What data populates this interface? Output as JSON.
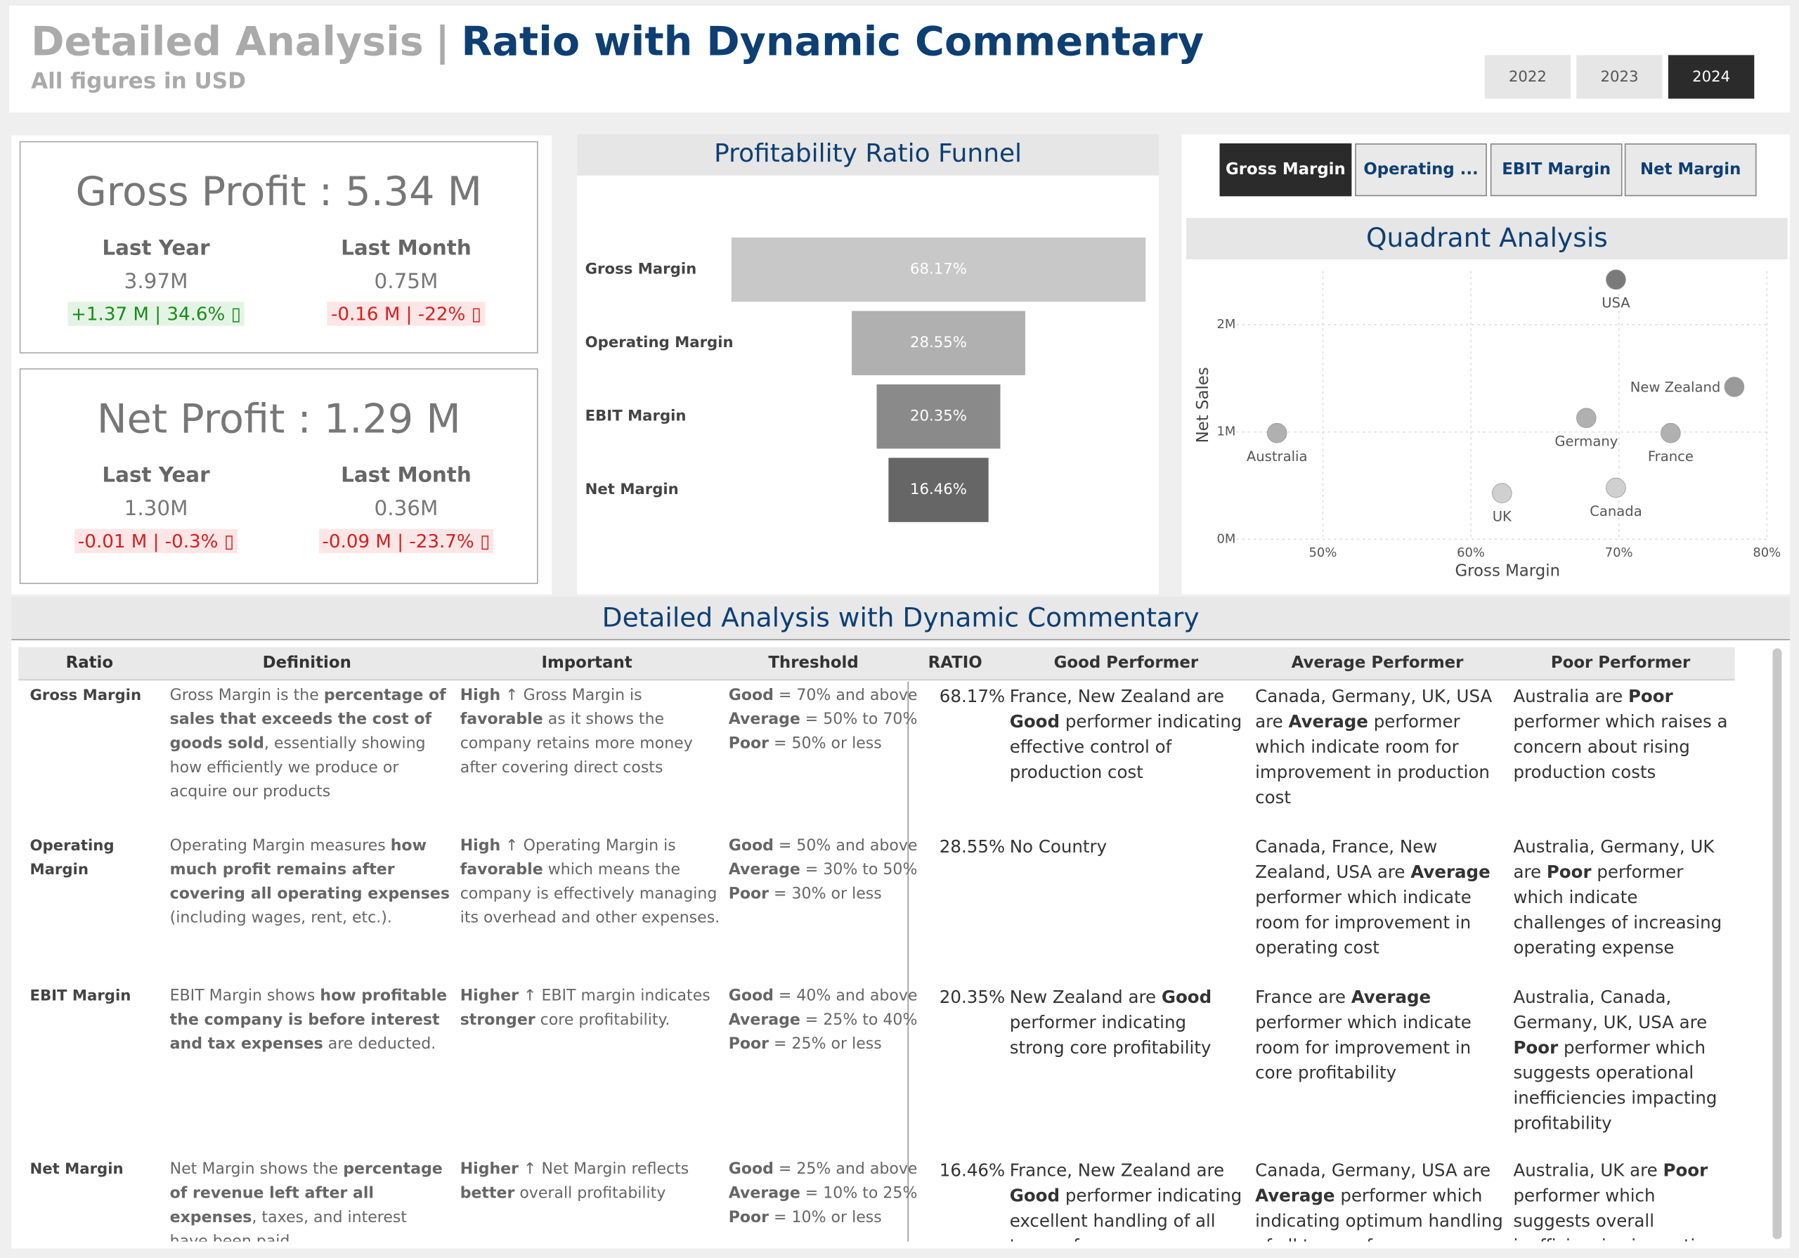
{
  "header": {
    "title_prefix": "Detailed Analysis",
    "separator": "|",
    "title": "Ratio with Dynamic Commentary",
    "subtitle": "All figures in USD",
    "years": {
      "options": [
        "2022",
        "2023",
        "2024"
      ],
      "selected": 2
    }
  },
  "kpis": [
    {
      "title": "Gross Profit : 5.34 M",
      "comparisons": [
        {
          "label": "Last Year",
          "value": "3.97M",
          "change": "+1.37 M | 34.6% ▯",
          "direction": "up"
        },
        {
          "label": "Last Month",
          "value": "0.75M",
          "change": "-0.16 M | -22% ▯",
          "direction": "down"
        }
      ]
    },
    {
      "title": "Net Profit : 1.29 M",
      "comparisons": [
        {
          "label": "Last Year",
          "value": "1.30M",
          "change": "-0.01 M | -0.3% ▯",
          "direction": "down"
        },
        {
          "label": "Last Month",
          "value": "0.36M",
          "change": "-0.09 M | -23.7% ▯",
          "direction": "down"
        }
      ]
    }
  ],
  "funnel": {
    "type": "funnel",
    "title": "Profitability Ratio Funnel",
    "categories": [
      "Gross Margin",
      "Operating Margin",
      "EBIT Margin",
      "Net Margin"
    ],
    "values": [
      68.17,
      28.55,
      20.35,
      16.46
    ],
    "value_labels": [
      "68.17%",
      "28.55%",
      "20.35%",
      "16.46%"
    ],
    "colors": [
      "#c8c8c8",
      "#b0b0b0",
      "#8a8a8a",
      "#666666"
    ]
  },
  "ratio_buttons": {
    "options": [
      "Gross Margin",
      "Operating ...",
      "EBIT Margin",
      "Net Margin"
    ],
    "selected": 0
  },
  "quadrant": {
    "type": "scatter",
    "title": "Quadrant Analysis",
    "x_label": "Gross Margin",
    "y_label": "Net Sales",
    "xlim": [
      43,
      80
    ],
    "ylim": [
      0,
      2.5
    ],
    "xticks": [
      {
        "value": 50,
        "label": "50%"
      },
      {
        "value": 60,
        "label": "60%"
      },
      {
        "value": 70,
        "label": "70%"
      },
      {
        "value": 80,
        "label": "80%"
      }
    ],
    "yticks": [
      {
        "value": 0,
        "label": "0M"
      },
      {
        "value": 1,
        "label": "1M"
      },
      {
        "value": 2,
        "label": "2M"
      }
    ],
    "grid": true,
    "points": [
      {
        "name": "USA",
        "x": 69.8,
        "y": 2.42,
        "color": "#7a7a7a"
      },
      {
        "name": "New Zealand",
        "x": 77.8,
        "y": 1.42,
        "color": "#9a9a9a"
      },
      {
        "name": "Germany",
        "x": 67.8,
        "y": 1.13,
        "color": "#b0b0b0"
      },
      {
        "name": "Australia",
        "x": 46.9,
        "y": 0.99,
        "color": "#b0b0b0"
      },
      {
        "name": "France",
        "x": 73.5,
        "y": 0.99,
        "color": "#b0b0b0"
      },
      {
        "name": "UK",
        "x": 62.1,
        "y": 0.43,
        "color": "#d0d0d0"
      },
      {
        "name": "Canada",
        "x": 69.8,
        "y": 0.48,
        "color": "#d0d0d0"
      }
    ]
  },
  "table": {
    "title": "Detailed Analysis with Dynamic Commentary",
    "columns": [
      "Ratio",
      "Definition",
      "Important",
      "Threshold",
      "RATIO",
      "Good Performer",
      "Average Performer",
      "Poor Performer"
    ],
    "rows": [
      {
        "ratio": "Gross Margin",
        "definition": [
          "Gross Margin is the ",
          {
            "b": "percentage of sales that exceeds the cost of goods sold"
          },
          ", essentially showing how efficiently we produce or acquire our products"
        ],
        "important": [
          {
            "b": "High"
          },
          " ↑ Gross Margin is ",
          {
            "b": "favorable"
          },
          " as it shows the company retains more money after covering direct costs"
        ],
        "threshold": [
          {
            "level": "Good",
            "rule": " = 70% and above"
          },
          {
            "level": "Average",
            "rule": " = 50% to 70%"
          },
          {
            "level": "Poor",
            "rule": " = 50% or less"
          }
        ],
        "value": "68.17%",
        "good": [
          "France, New Zealand are ",
          {
            "b": "Good"
          },
          " performer indicating effective control of production cost"
        ],
        "average": [
          "Canada, Germany, UK, USA are ",
          {
            "b": "Average"
          },
          " performer which indicate room for improvement in production cost"
        ],
        "poor": [
          "Australia are ",
          {
            "b": "Poor"
          },
          " performer which raises a concern about rising production costs"
        ]
      },
      {
        "ratio": "Operating Margin",
        "definition": [
          "Operating Margin measures ",
          {
            "b": "how much profit remains after covering all operating expenses"
          },
          " (including wages, rent, etc.)."
        ],
        "important": [
          {
            "b": "High"
          },
          " ↑ Operating Margin is ",
          {
            "b": "favorable"
          },
          " which means the company is effectively managing its overhead and other expenses."
        ],
        "threshold": [
          {
            "level": "Good",
            "rule": " = 50% and above"
          },
          {
            "level": "Average",
            "rule": " = 30% to 50%"
          },
          {
            "level": "Poor",
            "rule": " = 30% or less"
          }
        ],
        "value": "28.55%",
        "good": [
          "No Country"
        ],
        "average": [
          "Canada, France, New Zealand, USA are ",
          {
            "b": "Average"
          },
          " performer which indicate room for improvement in operating cost"
        ],
        "poor": [
          "Australia, Germany, UK are ",
          {
            "b": "Poor"
          },
          " performer which indicate challenges of increasing operating expense"
        ]
      },
      {
        "ratio": "EBIT Margin",
        "definition": [
          "EBIT Margin shows ",
          {
            "b": "how profitable the company is before interest and tax expenses"
          },
          " are deducted."
        ],
        "important": [
          {
            "b": "Higher"
          },
          " ↑ EBIT margin indicates ",
          {
            "b": "stronger"
          },
          " core profitability."
        ],
        "threshold": [
          {
            "level": "Good",
            "rule": " = 40% and above"
          },
          {
            "level": "Average",
            "rule": " = 25% to 40%"
          },
          {
            "level": "Poor",
            "rule": " = 25% or less"
          }
        ],
        "value": "20.35%",
        "good": [
          "New Zealand are ",
          {
            "b": "Good"
          },
          " performer indicating strong core profitability"
        ],
        "average": [
          "France are ",
          {
            "b": "Average"
          },
          " performer which indicate room for improvement in core profitability"
        ],
        "poor": [
          "Australia, Canada, Germany, UK, USA are ",
          {
            "b": "Poor"
          },
          " performer which suggests operational inefficiencies impacting profitability"
        ]
      },
      {
        "ratio": "Net Margin",
        "definition": [
          "Net Margin shows the ",
          {
            "b": "percentage of revenue left after all expenses"
          },
          ", taxes, and interest have been paid."
        ],
        "important": [
          {
            "b": "Higher"
          },
          " ↑ Net Margin reflects ",
          {
            "b": "better"
          },
          " overall profitability"
        ],
        "threshold": [
          {
            "level": "Good",
            "rule": " = 25% and above"
          },
          {
            "level": "Average",
            "rule": " = 10% to 25%"
          },
          {
            "level": "Poor",
            "rule": " = 10% or less"
          }
        ],
        "value": "16.46%",
        "good": [
          "France, New Zealand are ",
          {
            "b": "Good"
          },
          " performer indicating excellent handling of all types of expenses"
        ],
        "average": [
          "Canada, Germany, USA are ",
          {
            "b": "Average"
          },
          " performer which indicating optimum handling of all types of expenses"
        ],
        "poor": [
          "Australia, UK are ",
          {
            "b": "Poor"
          },
          " performer which suggests overall inefficiencies impacting profitability"
        ]
      }
    ]
  }
}
